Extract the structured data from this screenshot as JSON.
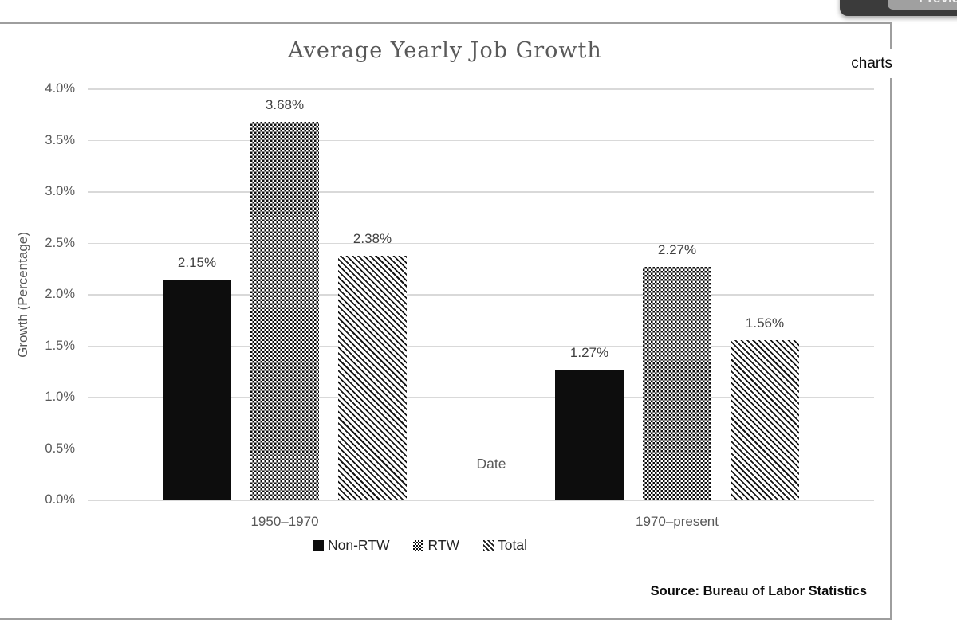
{
  "page": {
    "previous_button": "Previous",
    "charts_label": "charts"
  },
  "chart_data": {
    "type": "bar",
    "title": "Average Yearly Job Growth",
    "xlabel": "Date",
    "ylabel": "Growth (Percentage)",
    "categories": [
      "1950–1970",
      "1970–present"
    ],
    "series": [
      {
        "name": "Non-RTW",
        "pattern": "solid",
        "values": [
          2.15,
          1.27
        ],
        "labels": [
          "2.15%",
          "1.27%"
        ]
      },
      {
        "name": "RTW",
        "pattern": "checker",
        "values": [
          3.68,
          2.27
        ],
        "labels": [
          "3.68%",
          "2.27%"
        ]
      },
      {
        "name": "Total",
        "pattern": "diagonal",
        "values": [
          2.38,
          1.56
        ],
        "labels": [
          "2.38%",
          "1.56%"
        ]
      }
    ],
    "ylim": [
      0,
      4.0
    ],
    "ytick_step": 0.5,
    "yticks": [
      "4.0%",
      "3.5%",
      "3.0%",
      "2.5%",
      "2.0%",
      "1.5%",
      "1.0%",
      "0.5%",
      "0.0%"
    ],
    "grid": true,
    "legend_position": "bottom",
    "source": "Source: Bureau of Labor Statistics",
    "colors": {
      "bar": "#0d0d0d",
      "gridline": "#d9d9d9",
      "frame_border": "#9e9e9e",
      "text_muted": "#595959",
      "text_dark": "#404040",
      "popup_bg": "#3b3b3b",
      "popup_button_bg": "#a0a0a0"
    }
  }
}
